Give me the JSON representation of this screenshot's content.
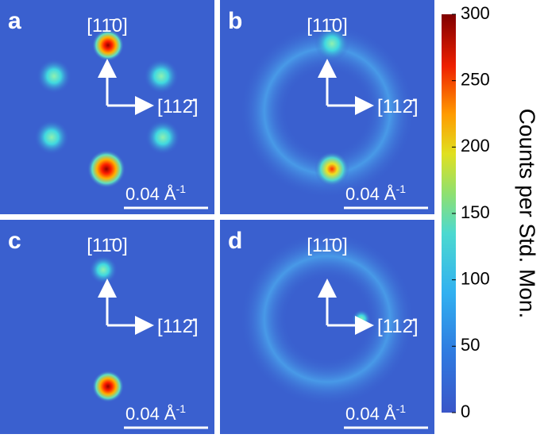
{
  "chart_data": {
    "type": "heatmap",
    "panels": [
      {
        "label": "a",
        "dir_up": "[11̄0]",
        "dir_right": "[112̄]",
        "scale_bar": "0.04 Å",
        "scale_bar_exponent": "-1"
      },
      {
        "label": "b",
        "dir_up": "[11̄0]",
        "dir_right": "[112̄]",
        "scale_bar": "0.04 Å",
        "scale_bar_exponent": "-1"
      },
      {
        "label": "c",
        "dir_up": "[11̄0]",
        "dir_right": "[112̄]",
        "scale_bar": "0.04 Å",
        "scale_bar_exponent": "-1"
      },
      {
        "label": "d",
        "dir_up": "[11̄0]",
        "dir_right": "[112̄]",
        "scale_bar": "0.04 Å",
        "scale_bar_exponent": "-1"
      }
    ],
    "colorbar": {
      "label": "Counts per Std. Mon.",
      "lim": [
        0,
        300
      ],
      "ticks": [
        0,
        50,
        100,
        150,
        200,
        250,
        300
      ]
    }
  }
}
